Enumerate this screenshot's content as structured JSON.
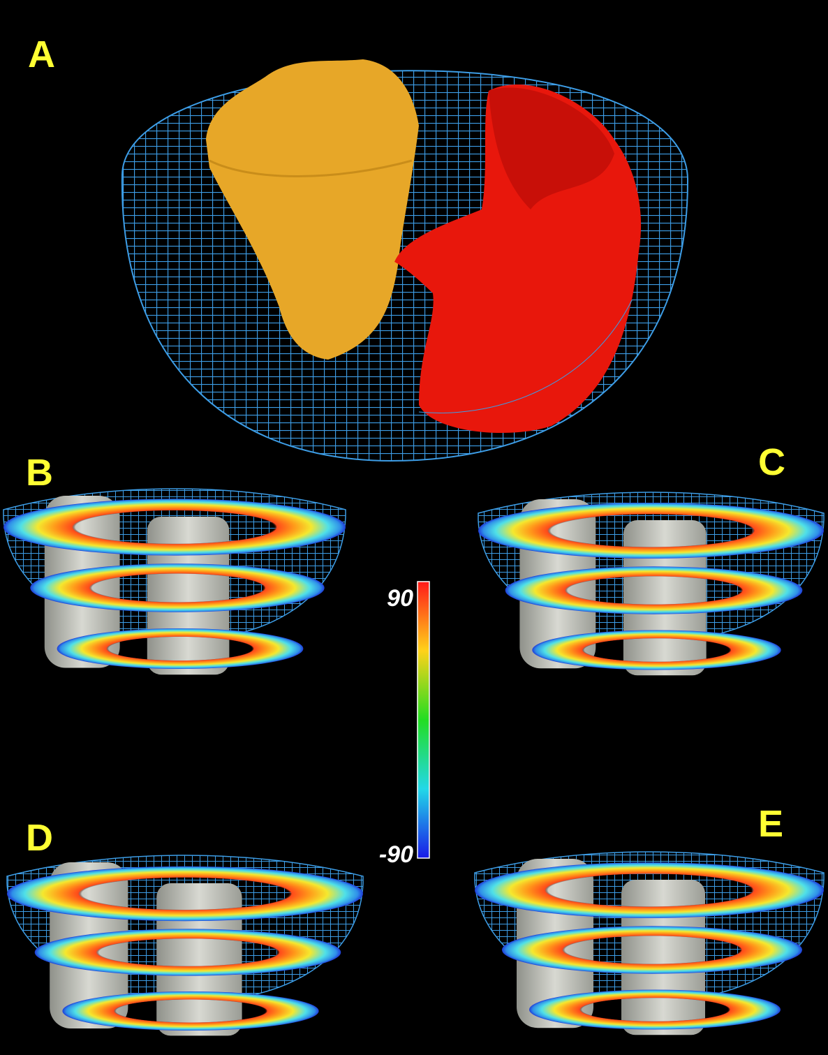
{
  "panels": [
    {
      "label": "A"
    },
    {
      "label": "B"
    },
    {
      "label": "C"
    },
    {
      "label": "D"
    },
    {
      "label": "E"
    }
  ],
  "colorbar": {
    "max_label": "90",
    "min_label": "-90"
  }
}
